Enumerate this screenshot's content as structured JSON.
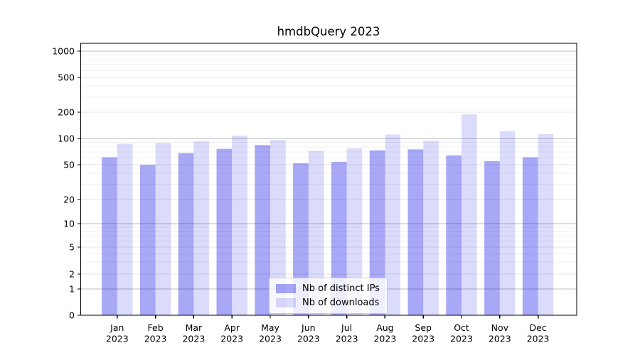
{
  "chart_data": {
    "type": "bar",
    "title": "hmdbQuery 2023",
    "categories": [
      "Jan",
      "Feb",
      "Mar",
      "Apr",
      "May",
      "Jun",
      "Jul",
      "Aug",
      "Sep",
      "Oct",
      "Nov",
      "Dec"
    ],
    "year": "2023",
    "series": [
      {
        "name": "Nb of distinct IPs",
        "color_hex": "#AAAAF4",
        "fill": "rgba(0,0,230,0.34)",
        "values": [
          61,
          50,
          68,
          76,
          84,
          52,
          54,
          73,
          75,
          64,
          55,
          61
        ]
      },
      {
        "name": "Nb of downloads",
        "color_hex": "#DBDBF9",
        "fill": "rgba(0,0,230,0.14)",
        "values": [
          87,
          89,
          93,
          108,
          96,
          72,
          77,
          111,
          94,
          189,
          121,
          112
        ]
      }
    ],
    "y_axis": {
      "scale": "symlog",
      "ticks": [
        0,
        1,
        2,
        5,
        10,
        20,
        50,
        100,
        200,
        500,
        1000
      ],
      "minor_ticks": [
        3,
        4,
        6,
        7,
        8,
        9,
        30,
        40,
        60,
        70,
        80,
        90,
        300,
        400,
        600,
        700,
        800,
        900
      ],
      "ylim": [
        0,
        1250
      ]
    },
    "legend": {
      "position": "lower center"
    },
    "grid": true
  },
  "colors": {
    "grid_decade": "#bdbdbd",
    "grid_labeled": "#e4e4e4",
    "grid_minor": "#f0f0f0",
    "axis": "#000000",
    "text": "#000000"
  }
}
